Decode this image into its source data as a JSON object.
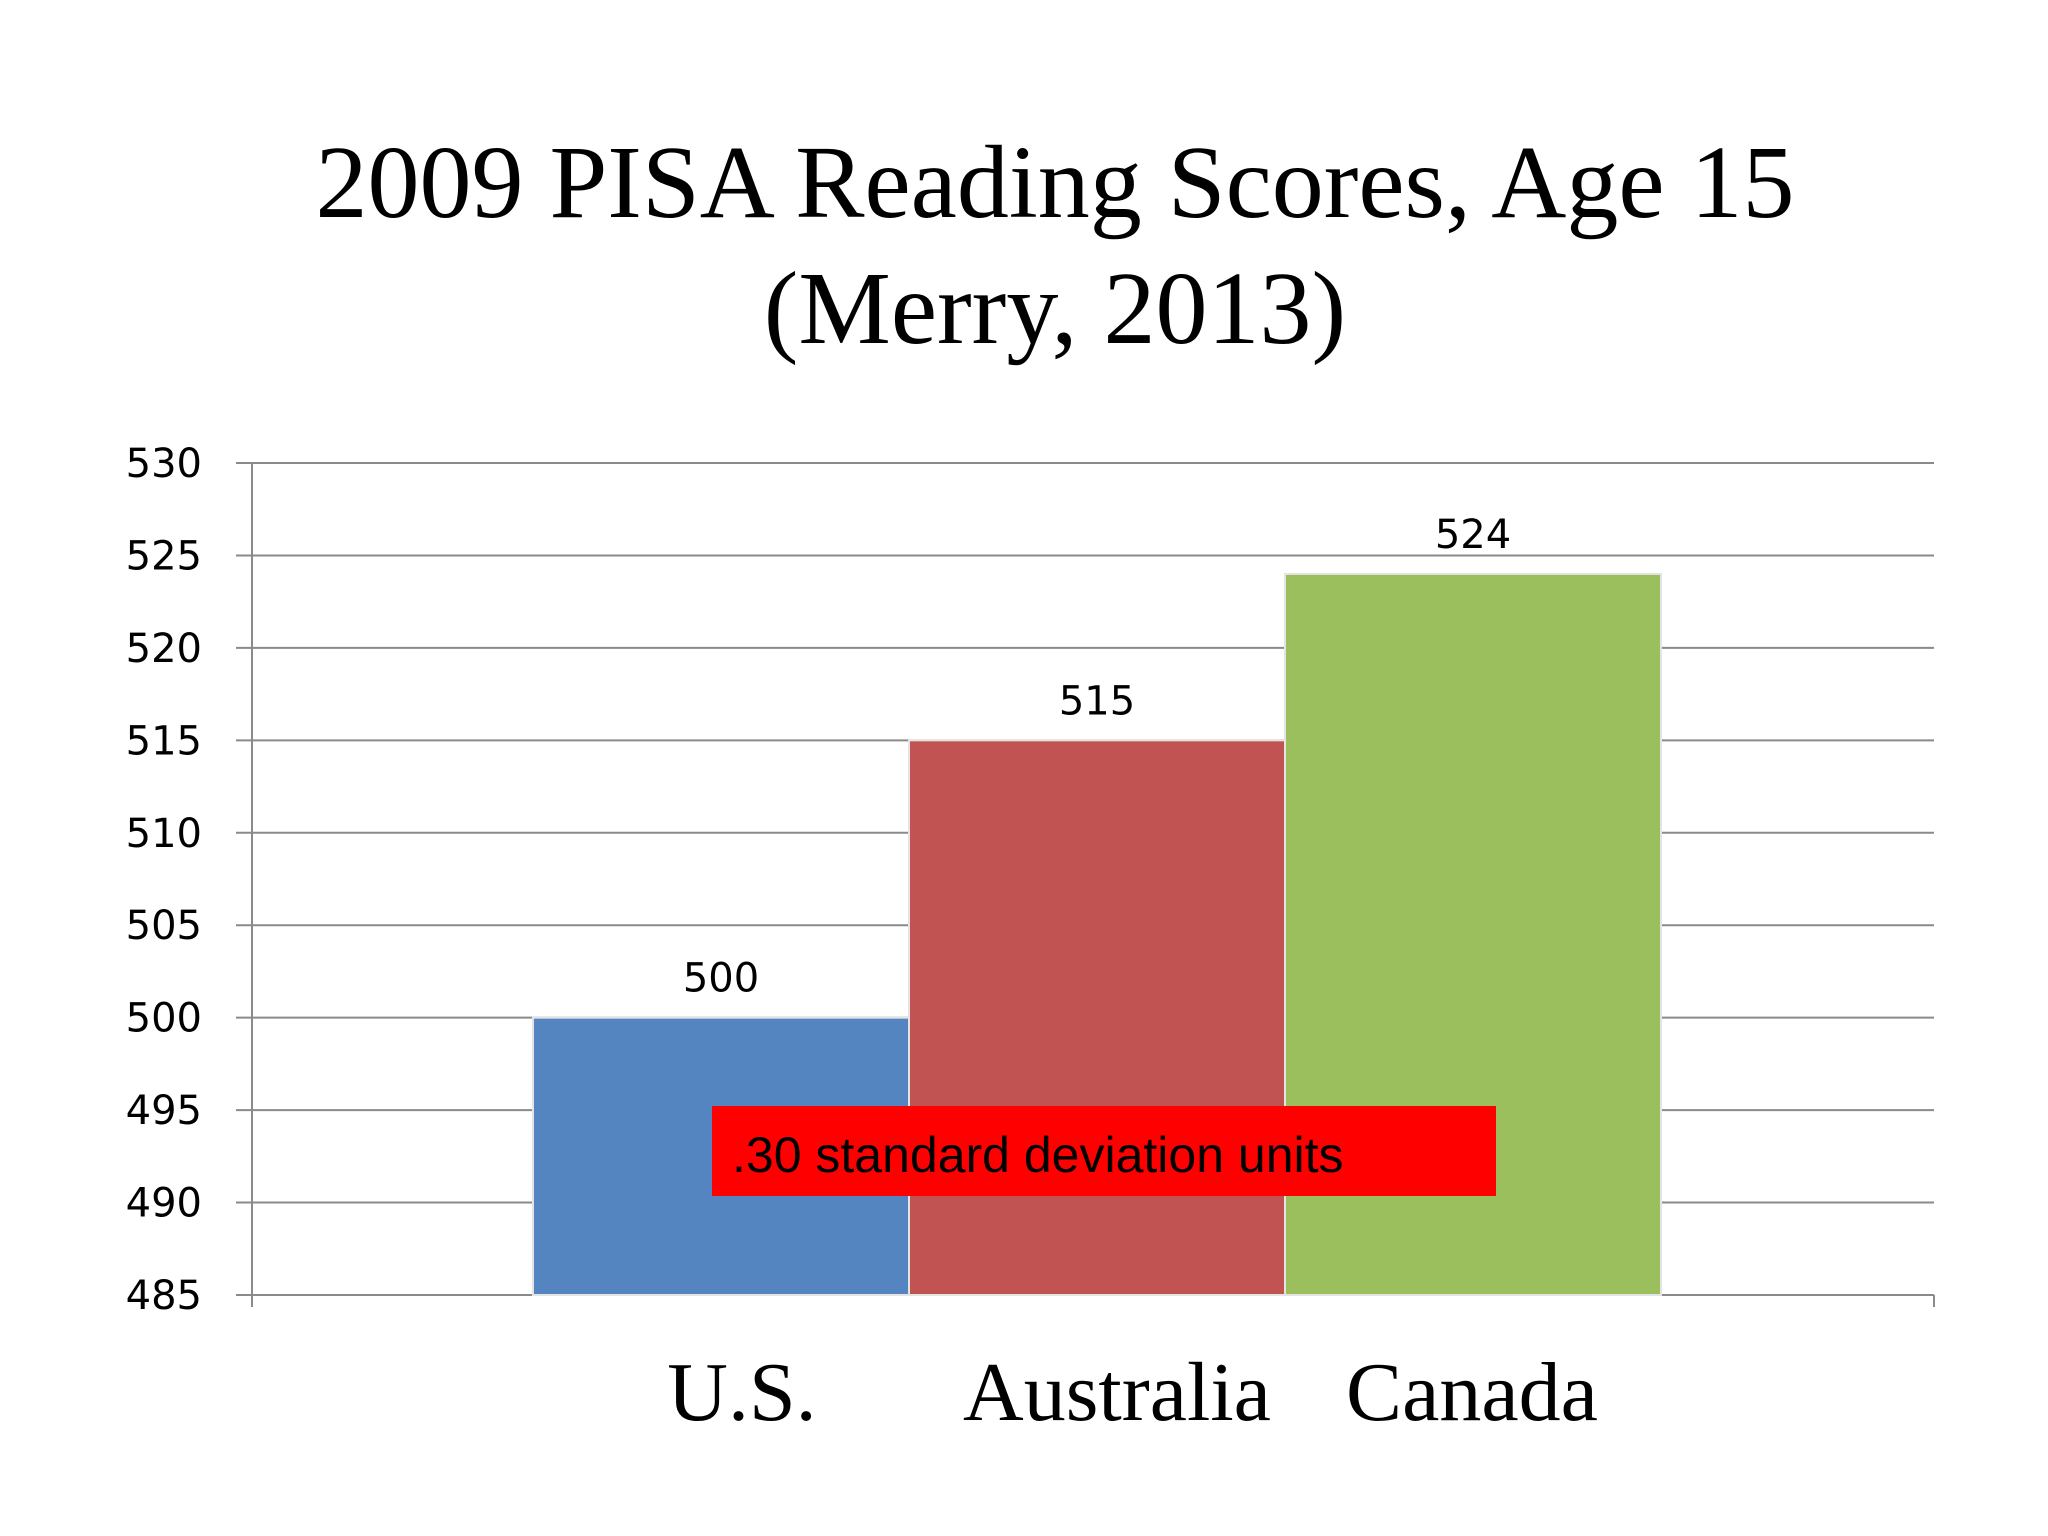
{
  "chart_data": {
    "type": "bar",
    "title_line1": "2009 PISA Reading Scores, Age 15",
    "title_line2": "(Merry, 2013)",
    "categories": [
      "U.S.",
      "Australia",
      "Canada"
    ],
    "values": [
      500,
      515,
      524
    ],
    "data_labels": [
      "500",
      "515",
      "524"
    ],
    "colors": [
      "#5585c0",
      "#c15452",
      "#9cbf5e"
    ],
    "ylim": [
      485,
      530
    ],
    "yticks": [
      485,
      490,
      495,
      500,
      505,
      510,
      515,
      520,
      525,
      530
    ],
    "grid": true,
    "annotation": ".30 standard deviation units",
    "annotation_color": "#ff0000"
  }
}
